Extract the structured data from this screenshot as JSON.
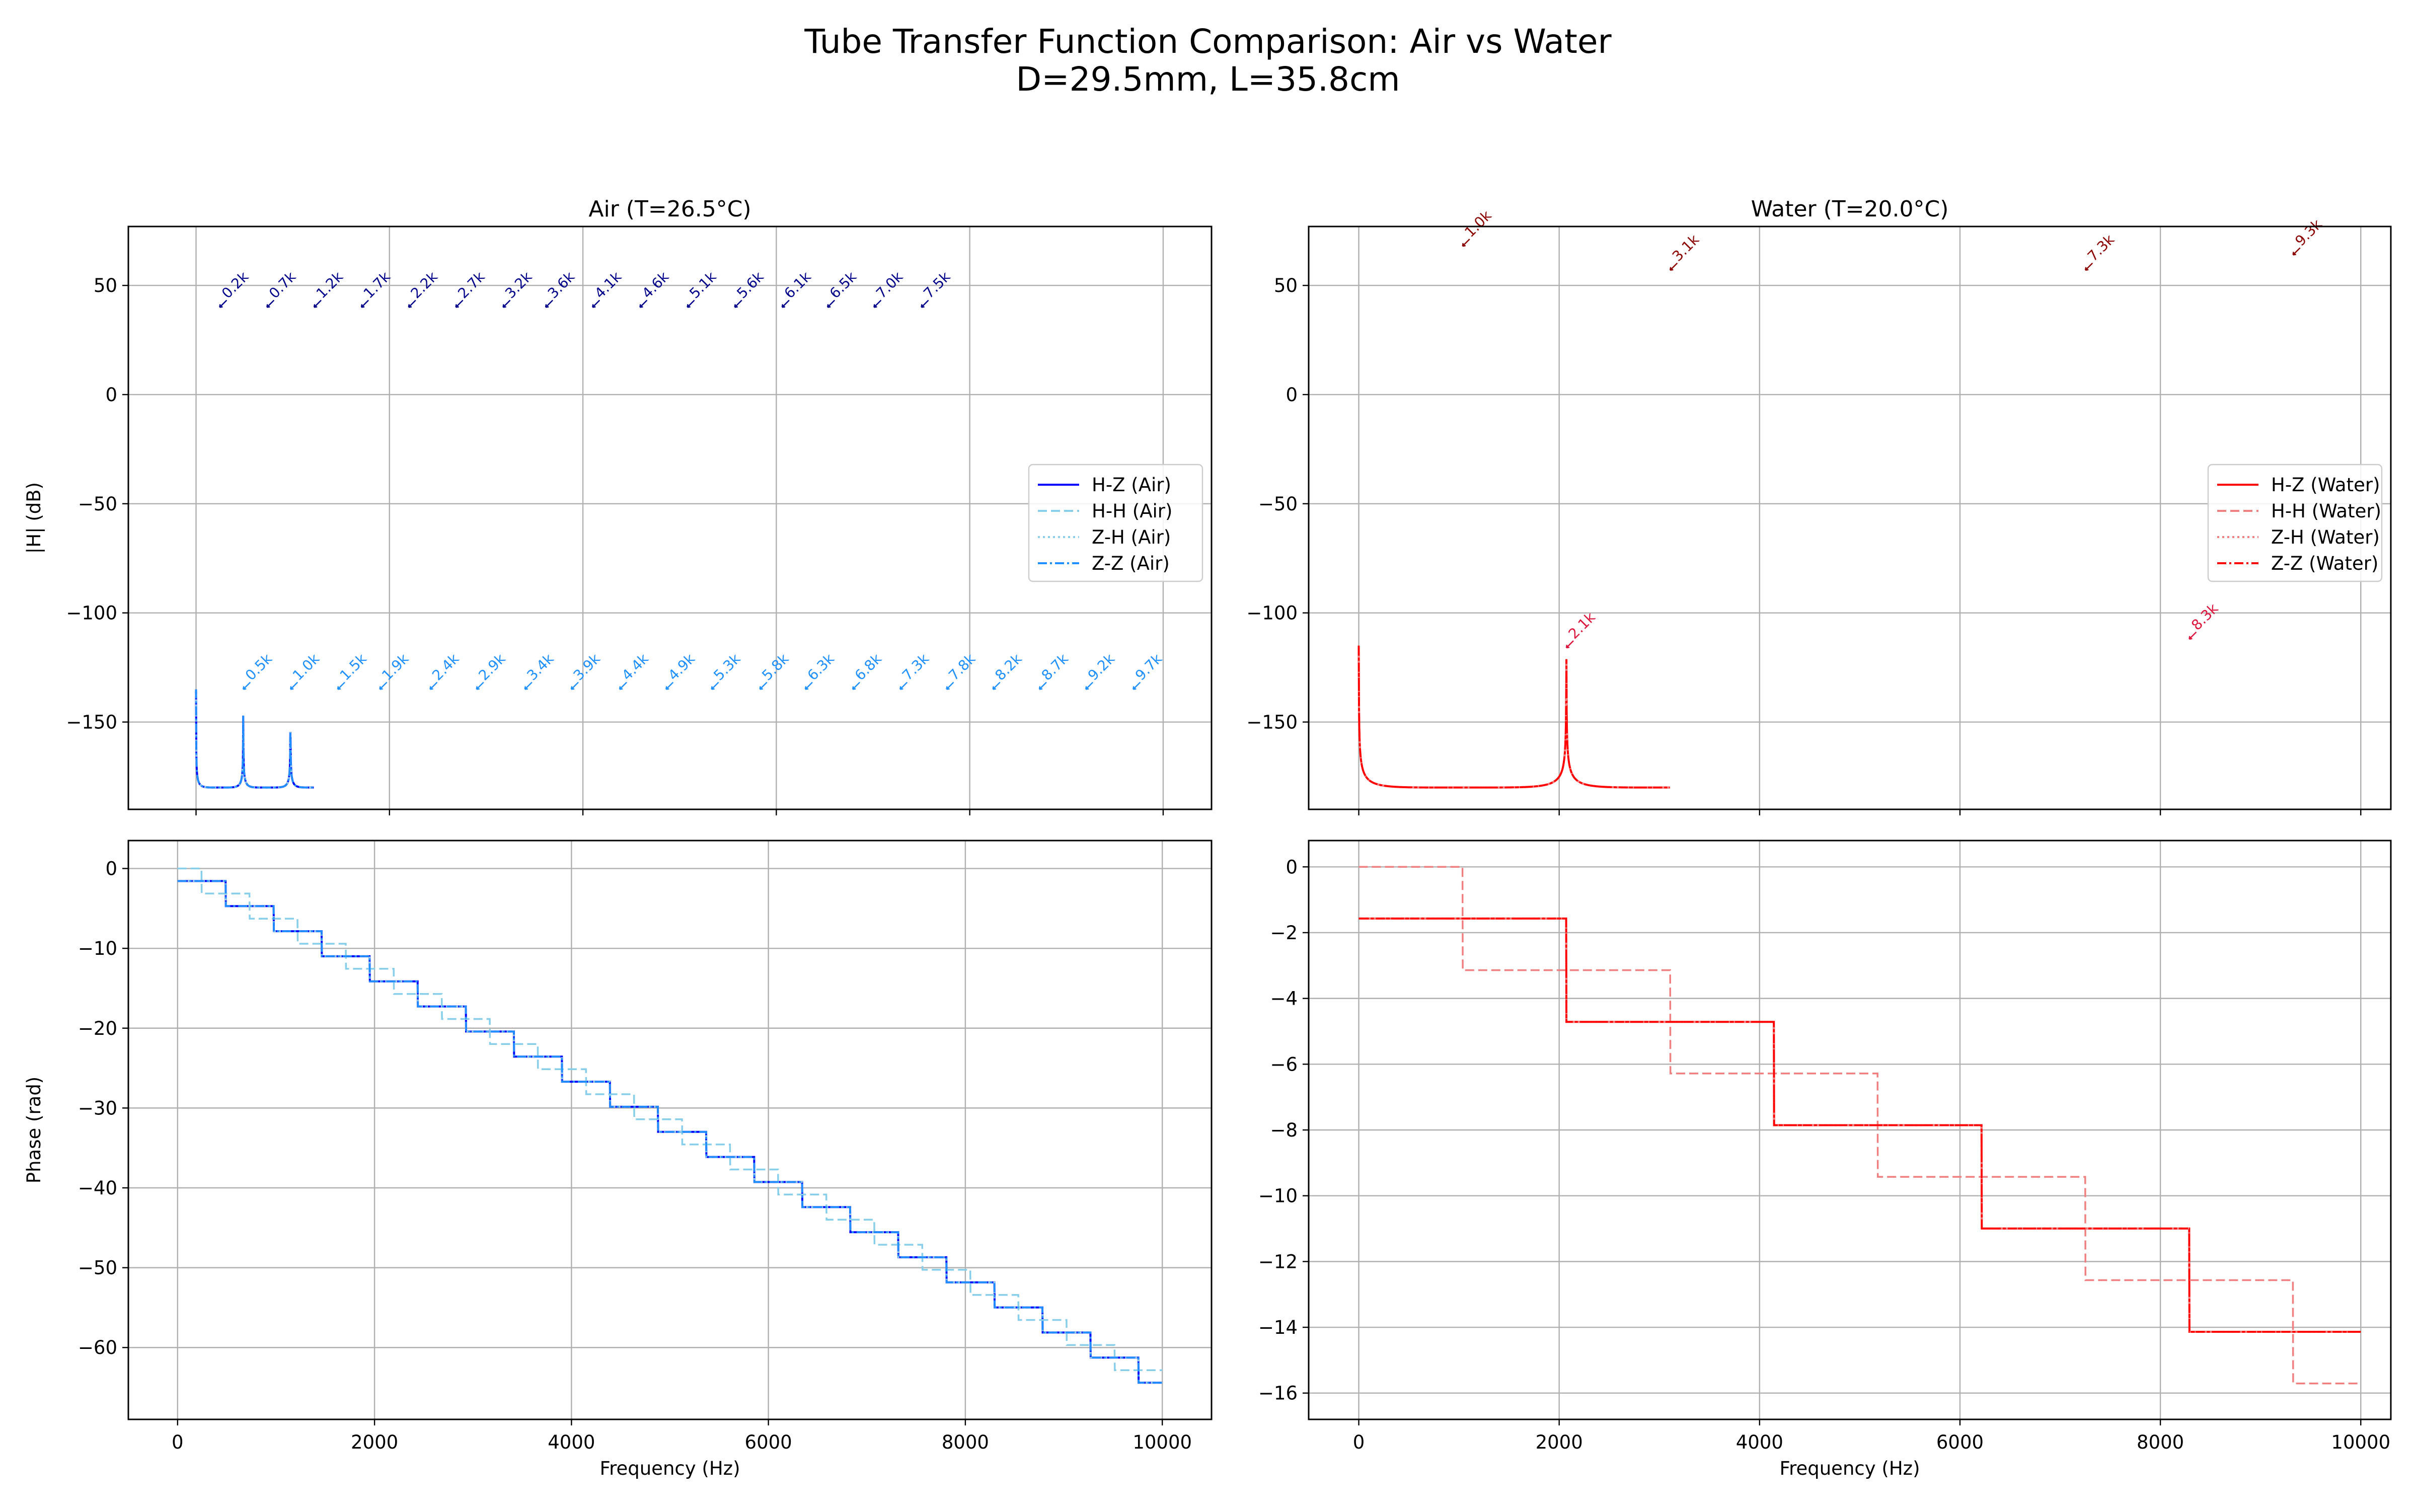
{
  "figure": {
    "title_line1": "Tube Transfer Function Comparison: Air vs Water",
    "title_line2": "D=29.5mm, L=35.8cm"
  },
  "colors": {
    "air_hz": "#0000ff",
    "air_hh": "#87ceeb",
    "air_zh": "#87ceeb",
    "air_zz": "#1e90ff",
    "air_peak_label_top": "#00008b",
    "air_peak_label_bottom": "#1e90ff",
    "water_hz": "#ff0000",
    "water_hh": "#f08080",
    "water_zh": "#f08080",
    "water_zz": "#ff0000",
    "water_peak_label_top": "#8b0000",
    "water_peak_label_bottom": "#dc143c"
  },
  "chart_data": [
    {
      "id": "air_mag",
      "type": "line",
      "title": "Air (T=26.5°C)",
      "xlabel": "",
      "ylabel": "|H| (dB)",
      "xlim": [
        -700,
        10500
      ],
      "ylim": [
        -190,
        77
      ],
      "xticks": [
        0,
        2000,
        4000,
        6000,
        8000,
        10000
      ],
      "show_xtick_labels": false,
      "yticks": [
        50,
        0,
        -50,
        -100,
        -150
      ],
      "ytick_labels": [
        "50",
        "0",
        "−50",
        "−100",
        "−150"
      ],
      "grid": true,
      "legend_position": "center right",
      "legend": [
        "H-Z (Air)",
        "H-H (Air)",
        "Z-H (Air)",
        "Z-Z (Air)"
      ],
      "series": [
        {
          "name": "H-Z (Air)",
          "style": "solid",
          "color_key": "air_hz",
          "model": {
            "kind": "odd",
            "f0": 244,
            "peak": -135,
            "base": -180,
            "gamma": 0.0015
          }
        },
        {
          "name": "H-H (Air)",
          "style": "dashed",
          "color_key": "air_hh",
          "model": {
            "kind": "even",
            "f0": 244,
            "peak": 40,
            "base": 0,
            "gamma": 0.002
          }
        },
        {
          "name": "Z-H (Air)",
          "style": "dotted",
          "color_key": "air_zh",
          "model": {
            "kind": "odd",
            "f0": 244,
            "peak": -135,
            "base": -180,
            "gamma": 0.0015
          }
        },
        {
          "name": "Z-Z (Air)",
          "style": "dashdot",
          "color_key": "air_zz",
          "model": {
            "kind": "odd",
            "f0": 244,
            "peak": -135,
            "base": -180,
            "gamma": 0.0015
          }
        }
      ],
      "peak_labels": [
        {
          "group": "top",
          "color_key": "air_peak_label_top",
          "y": 40,
          "points": [
            {
              "f": 244,
              "label": "0.2k"
            },
            {
              "f": 733,
              "label": "0.7k"
            },
            {
              "f": 1221,
              "label": "1.2k"
            },
            {
              "f": 1710,
              "label": "1.7k"
            },
            {
              "f": 2198,
              "label": "2.2k"
            },
            {
              "f": 2686,
              "label": "2.7k"
            },
            {
              "f": 3175,
              "label": "3.2k"
            },
            {
              "f": 3615,
              "label": "3.6k"
            },
            {
              "f": 4100,
              "label": "4.1k"
            },
            {
              "f": 4590,
              "label": "4.6k"
            },
            {
              "f": 5080,
              "label": "5.1k"
            },
            {
              "f": 5570,
              "label": "5.6k"
            },
            {
              "f": 6060,
              "label": "6.1k"
            },
            {
              "f": 6530,
              "label": "6.5k"
            },
            {
              "f": 7010,
              "label": "7.0k"
            },
            {
              "f": 7500,
              "label": "7.5k"
            }
          ]
        },
        {
          "group": "bottom",
          "color_key": "air_peak_label_bottom",
          "y": -135,
          "points": [
            {
              "f": 488,
              "label": "0.5k"
            },
            {
              "f": 977,
              "label": "1.0k"
            },
            {
              "f": 1465,
              "label": "1.5k"
            },
            {
              "f": 1900,
              "label": "1.9k"
            },
            {
              "f": 2420,
              "label": "2.4k"
            },
            {
              "f": 2900,
              "label": "2.9k"
            },
            {
              "f": 3400,
              "label": "3.4k"
            },
            {
              "f": 3880,
              "label": "3.9k"
            },
            {
              "f": 4380,
              "label": "4.4k"
            },
            {
              "f": 4860,
              "label": "4.9k"
            },
            {
              "f": 5330,
              "label": "5.3k"
            },
            {
              "f": 5830,
              "label": "5.8k"
            },
            {
              "f": 6300,
              "label": "6.3k"
            },
            {
              "f": 6790,
              "label": "6.8k"
            },
            {
              "f": 7280,
              "label": "7.3k"
            },
            {
              "f": 7760,
              "label": "7.8k"
            },
            {
              "f": 8240,
              "label": "8.2k"
            },
            {
              "f": 8720,
              "label": "8.7k"
            },
            {
              "f": 9200,
              "label": "9.2k"
            },
            {
              "f": 9690,
              "label": "9.7k"
            }
          ]
        }
      ]
    },
    {
      "id": "water_mag",
      "type": "line",
      "title": "Water (T=20.0°C)",
      "xlabel": "",
      "ylabel": "",
      "xlim": [
        -500,
        10300
      ],
      "ylim": [
        -190,
        77
      ],
      "xticks": [
        0,
        2000,
        4000,
        6000,
        8000,
        10000
      ],
      "show_xtick_labels": false,
      "yticks": [
        50,
        0,
        -50,
        -100,
        -150
      ],
      "ytick_labels": [
        "50",
        "0",
        "−50",
        "−100",
        "−150"
      ],
      "grid": true,
      "legend_position": "center right",
      "legend": [
        "H-Z (Water)",
        "H-H (Water)",
        "Z-H (Water)",
        "Z-Z (Water)"
      ],
      "series": [
        {
          "name": "H-Z (Water)",
          "style": "solid",
          "color_key": "water_hz",
          "model": {
            "kind": "odd",
            "f0": 1036,
            "peak": -115,
            "base": -180,
            "gamma": 0.0008
          }
        },
        {
          "name": "H-H (Water)",
          "style": "dashed",
          "color_key": "water_hh",
          "model": {
            "kind": "even",
            "f0": 1036,
            "peak": 65,
            "base": 0,
            "gamma": 0.0008
          }
        },
        {
          "name": "Z-H (Water)",
          "style": "dotted",
          "color_key": "water_zh",
          "model": {
            "kind": "odd",
            "f0": 1036,
            "peak": -115,
            "base": -180,
            "gamma": 0.0008
          }
        },
        {
          "name": "Z-Z (Water)",
          "style": "dashdot",
          "color_key": "water_zz",
          "model": {
            "kind": "odd",
            "f0": 1036,
            "peak": -115,
            "base": -180,
            "gamma": 0.0008
          }
        }
      ],
      "peak_labels": [
        {
          "group": "top",
          "color_key": "water_peak_label_top",
          "points": [
            {
              "f": 1036,
              "y": 68,
              "label": "1.0k"
            },
            {
              "f": 3108,
              "y": 57,
              "label": "3.1k"
            },
            {
              "f": 7252,
              "y": 57,
              "label": "7.3k"
            },
            {
              "f": 9324,
              "y": 64,
              "label": "9.3k"
            }
          ]
        },
        {
          "group": "bottom",
          "color_key": "water_peak_label_bottom",
          "points": [
            {
              "f": 2072,
              "y": -116,
              "label": "2.1k"
            },
            {
              "f": 8288,
              "y": -112,
              "label": "8.3k"
            }
          ]
        }
      ]
    },
    {
      "id": "air_phase",
      "type": "line",
      "title": "",
      "xlabel": "Frequency (Hz)",
      "ylabel": "Phase (rad)",
      "xlim": [
        -500,
        10500
      ],
      "ylim": [
        -69,
        3.5
      ],
      "xticks": [
        0,
        2000,
        4000,
        6000,
        8000,
        10000
      ],
      "show_xtick_labels": true,
      "yticks": [
        0,
        -10,
        -20,
        -30,
        -40,
        -50,
        -60
      ],
      "ytick_labels": [
        "0",
        "−10",
        "−20",
        "−30",
        "−40",
        "−50",
        "−60"
      ],
      "grid": true,
      "series": [
        {
          "name": "H-Z (Air)",
          "style": "solid",
          "color_key": "air_hz",
          "model": {
            "kind": "odd_phase",
            "f0": 244,
            "start": -1.571,
            "step": -3.1416
          }
        },
        {
          "name": "H-H (Air)",
          "style": "dashed",
          "color_key": "air_hh",
          "model": {
            "kind": "even_phase",
            "f0": 244,
            "start": 0,
            "step": -3.1416
          }
        },
        {
          "name": "Z-H (Air)",
          "style": "dotted",
          "color_key": "air_zh",
          "model": {
            "kind": "odd_phase",
            "f0": 244,
            "start": -1.571,
            "step": -3.1416
          }
        },
        {
          "name": "Z-Z (Air)",
          "style": "dashdot",
          "color_key": "air_zz",
          "model": {
            "kind": "odd_phase",
            "f0": 244,
            "start": -1.571,
            "step": -3.1416
          }
        }
      ]
    },
    {
      "id": "water_phase",
      "type": "line",
      "title": "",
      "xlabel": "Frequency (Hz)",
      "ylabel": "",
      "xlim": [
        -500,
        10300
      ],
      "ylim": [
        -16.8,
        0.8
      ],
      "xticks": [
        0,
        2000,
        4000,
        6000,
        8000,
        10000
      ],
      "show_xtick_labels": true,
      "yticks": [
        0,
        -2,
        -4,
        -6,
        -8,
        -10,
        -12,
        -14,
        -16
      ],
      "ytick_labels": [
        "0",
        "−2",
        "−4",
        "−6",
        "−8",
        "−10",
        "−12",
        "−14",
        "−16"
      ],
      "grid": true,
      "series": [
        {
          "name": "H-Z (Water)",
          "style": "solid",
          "color_key": "water_hz",
          "model": {
            "kind": "odd_phase",
            "f0": 1036,
            "start": -1.571,
            "step": -3.1416
          }
        },
        {
          "name": "H-H (Water)",
          "style": "dashed",
          "color_key": "water_hh",
          "model": {
            "kind": "even_phase",
            "f0": 1036,
            "start": 0,
            "step": -3.1416
          }
        },
        {
          "name": "Z-H (Water)",
          "style": "dotted",
          "color_key": "water_zh",
          "model": {
            "kind": "odd_phase",
            "f0": 1036,
            "start": -1.571,
            "step": -3.1416
          }
        },
        {
          "name": "Z-Z (Water)",
          "style": "dashdot",
          "color_key": "water_zz",
          "model": {
            "kind": "odd_phase",
            "f0": 1036,
            "start": -1.571,
            "step": -3.1416
          }
        }
      ]
    }
  ]
}
